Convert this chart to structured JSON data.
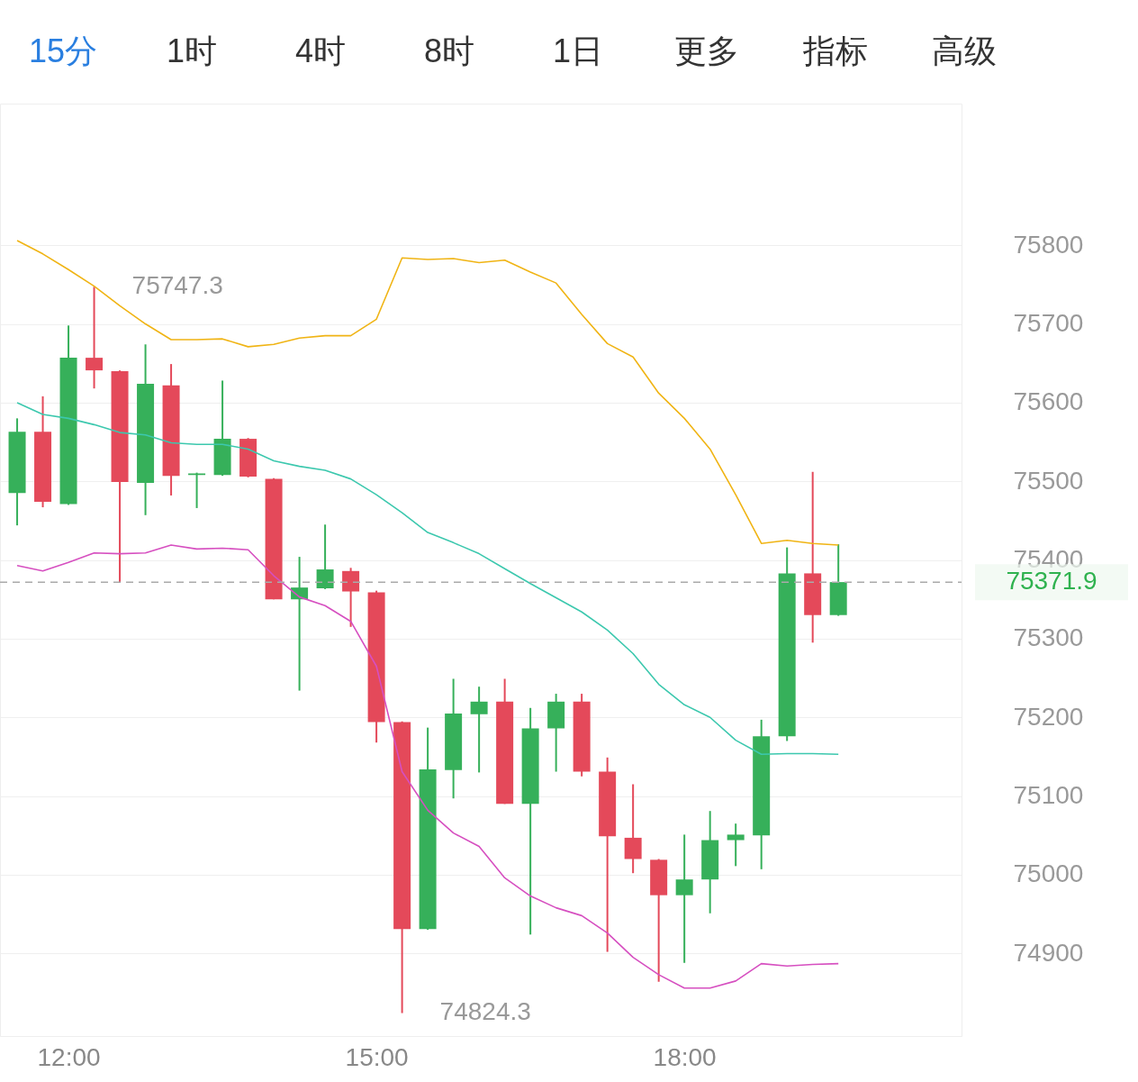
{
  "chart_data": {
    "type": "candlestick",
    "x": [
      11.5,
      11.75,
      12,
      12.25,
      12.5,
      12.75,
      13,
      13.25,
      13.5,
      13.75,
      14,
      14.25,
      14.5,
      14.75,
      15,
      15.25,
      15.5,
      15.75,
      16,
      16.25,
      16.5,
      16.75,
      17,
      17.25,
      17.5,
      17.75,
      18,
      18.25,
      18.5,
      18.75,
      19,
      19.25,
      19.5
    ],
    "ohlc": [
      [
        75485,
        75580,
        75444,
        75563
      ],
      [
        75563,
        75608,
        75467,
        75474
      ],
      [
        75471,
        75698,
        75470,
        75657
      ],
      [
        75657,
        75747.3,
        75618,
        75641
      ],
      [
        75640,
        75641,
        75372,
        75499
      ],
      [
        75498,
        75674,
        75457,
        75624
      ],
      [
        75622,
        75649,
        75482,
        75507
      ],
      [
        75508,
        75511,
        75466,
        75510
      ],
      [
        75508,
        75628,
        75507,
        75554
      ],
      [
        75554,
        75555,
        75505,
        75506
      ],
      [
        75503,
        75504,
        75350,
        75350
      ],
      [
        75350,
        75404,
        75234,
        75365
      ],
      [
        75364,
        75445,
        75363,
        75388
      ],
      [
        75386,
        75390,
        75315,
        75360
      ],
      [
        75359,
        75361,
        75168,
        75194
      ],
      [
        75194,
        75195,
        74824.3,
        74931
      ],
      [
        74931,
        75187,
        74930,
        75134
      ],
      [
        75133,
        75249,
        75097,
        75205
      ],
      [
        75204,
        75239,
        75130,
        75220
      ],
      [
        75220,
        75249,
        75090,
        75090
      ],
      [
        75090,
        75212,
        74924,
        75186
      ],
      [
        75186,
        75230,
        75131,
        75220
      ],
      [
        75220,
        75230,
        75125,
        75131
      ],
      [
        75131,
        75149,
        74902,
        75049
      ],
      [
        75047,
        75115,
        75002,
        75020
      ],
      [
        75019,
        75020,
        74864,
        74974
      ],
      [
        74974,
        75051,
        74888,
        74994
      ],
      [
        74994,
        75081,
        74951,
        75044
      ],
      [
        75044,
        75065,
        75011,
        75051
      ],
      [
        75050,
        75197,
        75007,
        75176
      ],
      [
        75176,
        75416,
        75170,
        75383
      ],
      [
        75383,
        75512,
        75295,
        75330
      ],
      [
        75330,
        75420,
        75329,
        75371.9
      ]
    ],
    "colors": [
      "#36b05a",
      "#e4495a",
      "#36b05a",
      "#e4495a",
      "#e4495a",
      "#36b05a",
      "#e4495a",
      "#36b05a",
      "#36b05a",
      "#e4495a",
      "#e4495a",
      "#36b05a",
      "#36b05a",
      "#e4495a",
      "#e4495a",
      "#e4495a",
      "#36b05a",
      "#36b05a",
      "#36b05a",
      "#e4495a",
      "#36b05a",
      "#36b05a",
      "#e4495a",
      "#e4495a",
      "#e4495a",
      "#e4495a",
      "#36b05a",
      "#36b05a",
      "#36b05a",
      "#36b05a",
      "#36b05a",
      "#e4495a",
      "#36b05a"
    ],
    "series": [
      {
        "type": "line",
        "color": "#f0b414",
        "values": [
          75806,
          75789,
          75769,
          75748,
          75723,
          75700,
          75680,
          75680,
          75681,
          75671,
          75674,
          75682,
          75685,
          75685,
          75706,
          75784,
          75782,
          75783,
          75778,
          75781,
          75766,
          75752,
          75712,
          75675,
          75658,
          75612,
          75580,
          75541,
          75483,
          75421,
          75425,
          75421,
          75419
        ]
      },
      {
        "type": "line",
        "color": "#3cc8ae",
        "values": [
          75600,
          75585,
          75580,
          75572,
          75562,
          75559,
          75549,
          75547,
          75547,
          75541,
          75526,
          75519,
          75514,
          75503,
          75483,
          75460,
          75435,
          75422,
          75408,
          75389,
          75370,
          75352,
          75334,
          75311,
          75281,
          75242,
          75216,
          75200,
          75171,
          75153,
          75154,
          75154,
          75153
        ]
      },
      {
        "type": "line",
        "color": "#d64fc0",
        "values": [
          75393,
          75386,
          75397,
          75409,
          75408,
          75409,
          75419,
          75414,
          75415,
          75413,
          75380,
          75353,
          75342,
          75322,
          75265,
          75131,
          75082,
          75053,
          75036,
          74996,
          74973,
          74958,
          74948,
          74926,
          74895,
          74873,
          74856,
          74856,
          74865,
          74887,
          74884,
          74886,
          74887
        ]
      }
    ],
    "xlim": [
      11.333,
      20.7
    ],
    "xticks": [
      {
        "value": 12,
        "label": "12:00"
      },
      {
        "value": 15,
        "label": "15:00"
      },
      {
        "value": 18,
        "label": "18:00"
      }
    ],
    "ylim": [
      74795,
      75980
    ],
    "yticks": [
      74900,
      75000,
      75100,
      75200,
      75300,
      75400,
      75500,
      75600,
      75700,
      75800
    ],
    "grid": "y",
    "ref_lines": [
      {
        "axis": "y",
        "value": 75371.9,
        "label": "75371.9",
        "color": "#aaaaaa",
        "line_style": "dashed"
      }
    ],
    "annotations": [
      "15分",
      "1时",
      "4时",
      "8时",
      "1日",
      "更多",
      "指标",
      "高级",
      {
        "text": "75747.3",
        "x": 12.25,
        "y": 75747.3
      },
      {
        "text": "74824.3",
        "x": 15.25,
        "y": 74824.3
      }
    ]
  }
}
